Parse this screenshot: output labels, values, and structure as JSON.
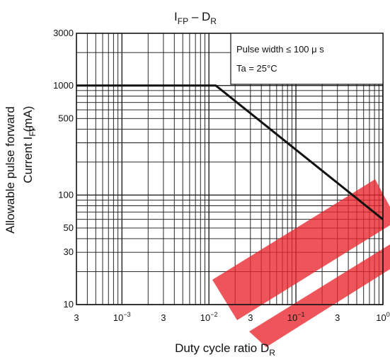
{
  "chart_data": {
    "type": "line",
    "title": {
      "main": "I",
      "main_sub": "FP",
      "sep": " – D",
      "sep_sub": "R"
    },
    "xlabel": {
      "main": "Duty cycle ratio  D",
      "sub": "R"
    },
    "ylabel": {
      "line1": "Allowable pulse forward",
      "line2_main": "Current   I",
      "line2_sub": "FP",
      "unit": "(mA)"
    },
    "x_scale": "log",
    "y_scale": "log",
    "xlim": [
      0.0003,
      1
    ],
    "ylim": [
      10,
      3000
    ],
    "grid": true,
    "x_ticks": [
      {
        "value": 0.0003,
        "label": "3",
        "exp": ""
      },
      {
        "value": 0.001,
        "label": "10",
        "exp": "−3"
      },
      {
        "value": 0.003,
        "label": "3",
        "exp": ""
      },
      {
        "value": 0.01,
        "label": "10",
        "exp": "−2"
      },
      {
        "value": 0.03,
        "label": "3",
        "exp": ""
      },
      {
        "value": 0.1,
        "label": "10",
        "exp": "−1"
      },
      {
        "value": 0.3,
        "label": "3",
        "exp": ""
      },
      {
        "value": 1,
        "label": "10",
        "exp": "0"
      }
    ],
    "y_ticks": [
      {
        "value": 10,
        "label": "10"
      },
      {
        "value": 30,
        "label": "30"
      },
      {
        "value": 50,
        "label": "50"
      },
      {
        "value": 100,
        "label": "100"
      },
      {
        "value": 500,
        "label": "500"
      },
      {
        "value": 1000,
        "label": "1000"
      },
      {
        "value": 3000,
        "label": "3000"
      }
    ],
    "series": [
      {
        "x": [
          0.0003,
          0.012,
          1
        ],
        "y": [
          1000,
          1000,
          60
        ],
        "color": "#111111"
      }
    ],
    "conditions": [
      "Pulse width ≤ 100  μ s",
      "Ta = 25°C"
    ],
    "conditions_position": "top-right"
  },
  "colors": {
    "line": "#111111",
    "grid": "#111111",
    "watermark": "#e8252b"
  }
}
